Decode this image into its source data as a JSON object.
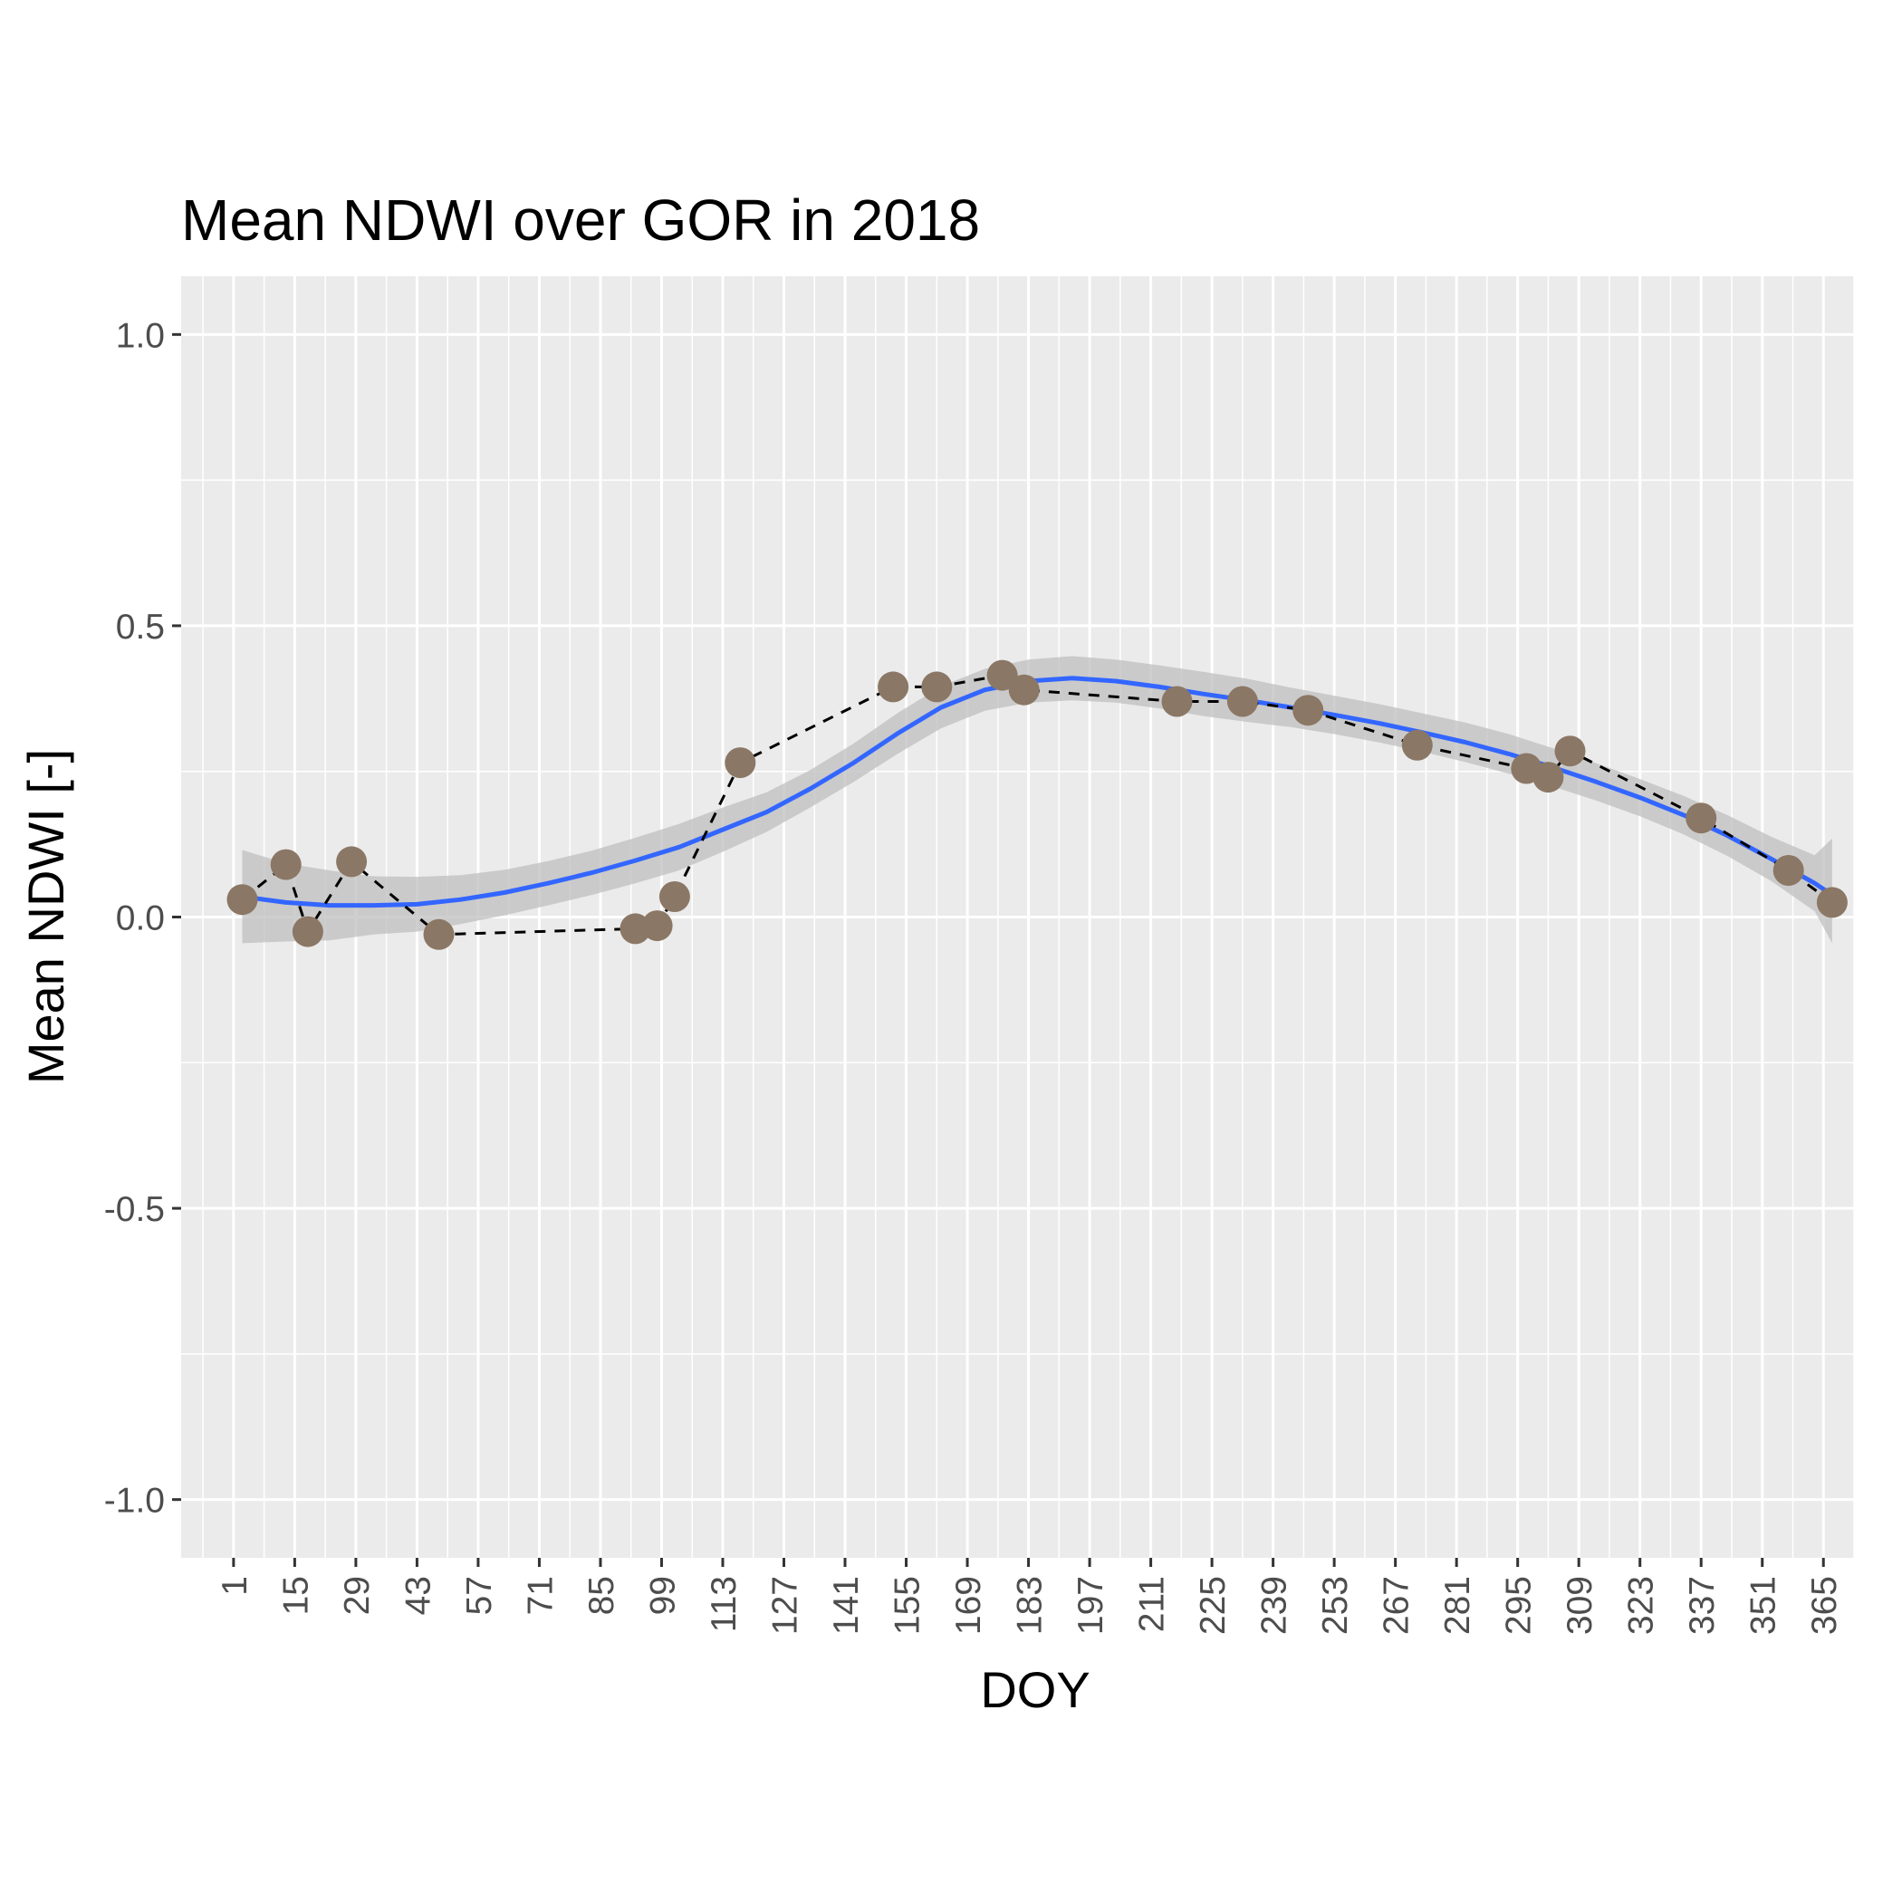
{
  "chart_data": {
    "type": "scatter",
    "title": "Mean NDWI over GOR in 2018",
    "xlabel": "DOY",
    "ylabel": "Mean NDWI [-]",
    "xlim": [
      -11,
      372
    ],
    "ylim": [
      -1.1,
      1.1
    ],
    "x_ticks": [
      1,
      15,
      29,
      43,
      57,
      71,
      85,
      99,
      113,
      127,
      141,
      155,
      169,
      183,
      197,
      211,
      225,
      239,
      253,
      267,
      281,
      295,
      309,
      323,
      337,
      351,
      365
    ],
    "y_ticks": [
      -1.0,
      -0.5,
      0.0,
      0.5,
      1.0
    ],
    "y_tick_labels": [
      "-1.0",
      "-0.5",
      "0.0",
      "0.5",
      "1.0"
    ],
    "grid": true,
    "legend": "none",
    "colors": {
      "panel": "#EBEBEB",
      "grid": "#FFFFFF",
      "points": "#8B7765",
      "smooth": "#3366FF",
      "ribbon": "#BFBFBF",
      "dashed_line": "#000000"
    },
    "series": [
      {
        "type": "points_dashed_line",
        "x": [
          3,
          13,
          18,
          28,
          48,
          93,
          98,
          102,
          117,
          152,
          162,
          177,
          182,
          217,
          232,
          247,
          272,
          297,
          302,
          307,
          337,
          357,
          367
        ],
        "y": [
          0.03,
          0.09,
          -0.025,
          0.095,
          -0.03,
          -0.02,
          -0.015,
          0.035,
          0.265,
          0.395,
          0.395,
          0.415,
          0.39,
          0.37,
          0.37,
          0.355,
          0.295,
          0.255,
          0.24,
          0.285,
          0.17,
          0.08,
          0.025
        ]
      },
      {
        "type": "smooth",
        "x": [
          3,
          13,
          23,
          33,
          43,
          53,
          63,
          73,
          83,
          93,
          103,
          113,
          123,
          133,
          143,
          153,
          163,
          173,
          183,
          193,
          203,
          213,
          223,
          233,
          243,
          253,
          263,
          273,
          283,
          293,
          303,
          313,
          323,
          333,
          343,
          353,
          363,
          367
        ],
        "y": [
          0.035,
          0.025,
          0.02,
          0.02,
          0.022,
          0.03,
          0.042,
          0.058,
          0.076,
          0.097,
          0.12,
          0.15,
          0.18,
          0.22,
          0.265,
          0.315,
          0.36,
          0.39,
          0.405,
          0.41,
          0.405,
          0.395,
          0.383,
          0.372,
          0.36,
          0.347,
          0.333,
          0.317,
          0.3,
          0.28,
          0.257,
          0.232,
          0.205,
          0.175,
          0.14,
          0.1,
          0.058,
          0.038
        ],
        "ci_lower": [
          -0.045,
          -0.042,
          -0.04,
          -0.03,
          -0.025,
          -0.012,
          0.003,
          0.02,
          0.038,
          0.058,
          0.08,
          0.112,
          0.146,
          0.188,
          0.232,
          0.28,
          0.324,
          0.354,
          0.368,
          0.372,
          0.368,
          0.358,
          0.345,
          0.335,
          0.326,
          0.314,
          0.3,
          0.284,
          0.266,
          0.246,
          0.224,
          0.2,
          0.173,
          0.142,
          0.105,
          0.062,
          0.01,
          -0.045
        ],
        "ci_upper": [
          0.115,
          0.092,
          0.08,
          0.07,
          0.069,
          0.072,
          0.081,
          0.096,
          0.114,
          0.136,
          0.16,
          0.188,
          0.214,
          0.252,
          0.298,
          0.35,
          0.396,
          0.426,
          0.442,
          0.448,
          0.442,
          0.432,
          0.421,
          0.409,
          0.394,
          0.38,
          0.366,
          0.35,
          0.334,
          0.314,
          0.29,
          0.264,
          0.237,
          0.208,
          0.175,
          0.138,
          0.106,
          0.135
        ]
      }
    ]
  }
}
